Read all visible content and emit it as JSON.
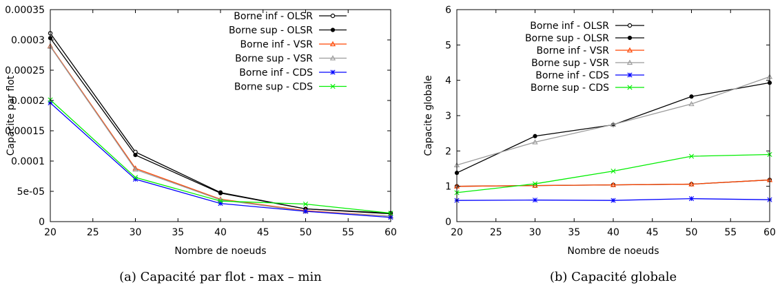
{
  "chart_data": [
    {
      "type": "line",
      "caption": "(a) Capacité par flot - max – min",
      "xlabel": "Nombre de noeuds",
      "ylabel": "Capacite par flot",
      "xlim": [
        20,
        60
      ],
      "ylim": [
        0,
        0.00035
      ],
      "xticks": [
        "20",
        "25",
        "30",
        "35",
        "40",
        "45",
        "50",
        "55",
        "60"
      ],
      "yticks": [
        "0",
        "5e-05",
        "0.0001",
        "0.00015",
        "0.0002",
        "0.00025",
        "0.0003",
        "0.00035"
      ],
      "x": [
        20,
        30,
        40,
        50,
        60
      ],
      "legend_position": "top-right",
      "series": [
        {
          "name": "Borne inf - OLSR",
          "color": "#000000",
          "marker": "open-circle",
          "values": [
            0.000311,
            0.000115,
            4.8e-05,
            2.1e-05,
            1.4e-05
          ]
        },
        {
          "name": "Borne sup - OLSR",
          "color": "#000000",
          "marker": "filled-circle",
          "values": [
            0.000303,
            0.00011,
            4.7e-05,
            2.1e-05,
            1.3e-05
          ]
        },
        {
          "name": "Borne inf - VSR",
          "color": "#ff4500",
          "marker": "triangle",
          "values": [
            0.00029,
            8.8e-05,
            3.7e-05,
            1.8e-05,
            9e-06
          ]
        },
        {
          "name": "Borne sup - VSR",
          "color": "#9a9a9a",
          "marker": "triangle",
          "values": [
            0.000289,
            8.6e-05,
            3.6e-05,
            1.7e-05,
            9e-06
          ]
        },
        {
          "name": "Borne inf - CDS",
          "color": "#0000ff",
          "marker": "star",
          "values": [
            0.000196,
            7e-05,
            3e-05,
            1.7e-05,
            7e-06
          ]
        },
        {
          "name": "Borne sup - CDS",
          "color": "#00ee00",
          "marker": "cross",
          "values": [
            0.000201,
            7.3e-05,
            3.4e-05,
            2.9e-05,
            1.4e-05
          ]
        }
      ]
    },
    {
      "type": "line",
      "caption": "(b) Capacité globale",
      "xlabel": "Nombre de noeuds",
      "ylabel": "Capacite globale",
      "xlim": [
        20,
        60
      ],
      "ylim": [
        0,
        6
      ],
      "xticks": [
        "20",
        "25",
        "30",
        "35",
        "40",
        "45",
        "50",
        "55",
        "60"
      ],
      "yticks": [
        "0",
        "1",
        "2",
        "3",
        "4",
        "5",
        "6"
      ],
      "x": [
        20,
        30,
        40,
        50,
        60
      ],
      "legend_position": "top-left",
      "series": [
        {
          "name": "Borne inf - OLSR",
          "color": "#000000",
          "marker": "open-circle",
          "values": [
            1.0,
            1.02,
            1.04,
            1.06,
            1.18
          ]
        },
        {
          "name": "Borne sup - OLSR",
          "color": "#000000",
          "marker": "filled-circle",
          "values": [
            1.38,
            2.42,
            2.74,
            3.54,
            3.93
          ]
        },
        {
          "name": "Borne inf - VSR",
          "color": "#ff4500",
          "marker": "triangle",
          "values": [
            1.0,
            1.02,
            1.04,
            1.06,
            1.18
          ]
        },
        {
          "name": "Borne sup - VSR",
          "color": "#9a9a9a",
          "marker": "triangle",
          "values": [
            1.6,
            2.25,
            2.75,
            3.33,
            4.1
          ]
        },
        {
          "name": "Borne inf - CDS",
          "color": "#0000ff",
          "marker": "star",
          "values": [
            0.6,
            0.61,
            0.6,
            0.65,
            0.62
          ]
        },
        {
          "name": "Borne sup - CDS",
          "color": "#00ee00",
          "marker": "cross",
          "values": [
            0.82,
            1.07,
            1.43,
            1.85,
            1.9
          ]
        }
      ]
    }
  ]
}
